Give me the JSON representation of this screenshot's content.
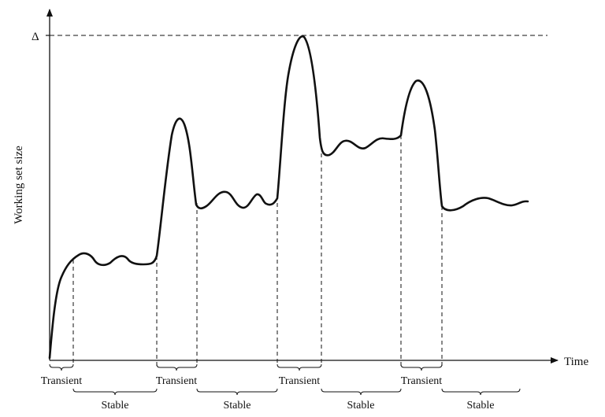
{
  "diagram": {
    "y_axis_label": "Working set size",
    "x_axis_label": "Time",
    "peak_label": "Δ",
    "transient_labels": [
      "Transient",
      "Transient",
      "Transient",
      "Transient"
    ],
    "stable_labels": [
      "Stable",
      "Stable",
      "Stable",
      "Stable"
    ]
  }
}
